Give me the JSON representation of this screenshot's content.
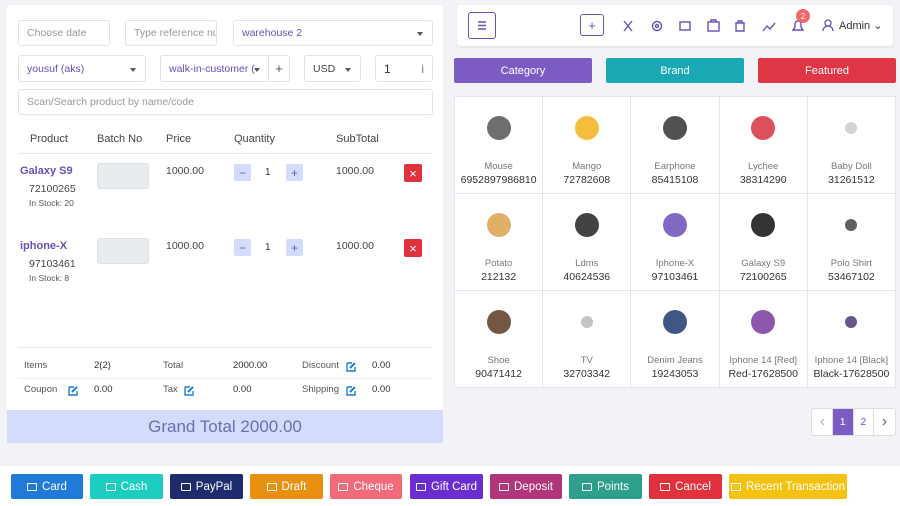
{
  "filters": {
    "date_placeholder": "Choose date",
    "reference_placeholder": "Type reference nu",
    "warehouse": "warehouse 2",
    "biller": "yousuf (aks)",
    "customer": "walk-in-customer (",
    "add_customer": "+",
    "currency": "USD",
    "exchange_rate": "1",
    "info": "i",
    "search_placeholder": "Scan/Search product by name/code"
  },
  "cart": {
    "headers": [
      "Product",
      "Batch No",
      "Price",
      "Quantity",
      "SubTotal"
    ],
    "minus": "−",
    "plus": "+",
    "remove": "×",
    "rows": [
      {
        "name": "Galaxy S9",
        "code": "72100265",
        "stock": "In Stock: 20",
        "price": "1000.00",
        "quantity": "1",
        "subtotal": "1000.00"
      },
      {
        "name": "iphone-X",
        "code": "97103461",
        "stock": "In Stock: 8",
        "price": "1000.00",
        "quantity": "1",
        "subtotal": "1000.00"
      }
    ]
  },
  "totals": [
    {
      "label": "Items",
      "value": "2(2)",
      "editable": false
    },
    {
      "label": "Total",
      "value": "2000.00",
      "editable": false
    },
    {
      "label": "Discount",
      "value": "0.00",
      "editable": true
    },
    {
      "label": "Coupon",
      "value": "0.00",
      "editable": true
    },
    {
      "label": "Tax",
      "value": "0.00",
      "editable": true
    },
    {
      "label": "Shipping",
      "value": "0.00",
      "editable": true
    }
  ],
  "grand_total": "Grand Total 2000.00",
  "nav": {
    "notifications": "2",
    "user": "Admin",
    "add": "+"
  },
  "tabs": [
    "Category",
    "Brand",
    "Featured"
  ],
  "products": [
    {
      "name": "Mouse",
      "code": "6952897986810"
    },
    {
      "name": "Mango",
      "code": "72782608"
    },
    {
      "name": "Earphone",
      "code": "85415108"
    },
    {
      "name": "Lychee",
      "code": "38314290"
    },
    {
      "name": "Baby Doll",
      "code": "31261512"
    },
    {
      "name": "Potato",
      "code": "212132"
    },
    {
      "name": "Ldms",
      "code": "40624536"
    },
    {
      "name": "Iphone-X",
      "code": "97103461"
    },
    {
      "name": "Galaxy S9",
      "code": "72100265"
    },
    {
      "name": "Polo Shirt",
      "code": "53467102"
    },
    {
      "name": "Shoe",
      "code": "90471412"
    },
    {
      "name": "TV",
      "code": "32703342"
    },
    {
      "name": "Denim Jeans",
      "code": "19243053"
    },
    {
      "name": "Iphone 14 [Red]",
      "code": "Red-17628500"
    },
    {
      "name": "Iphone 14 [Black]",
      "code": "Black-17628500"
    }
  ],
  "pagination": [
    "1",
    "2"
  ],
  "actions": [
    "Card",
    "Cash",
    "PayPal",
    "Draft",
    "Cheque",
    "Gift Card",
    "Deposit",
    "Points",
    "Cancel",
    "Recent Transaction"
  ]
}
